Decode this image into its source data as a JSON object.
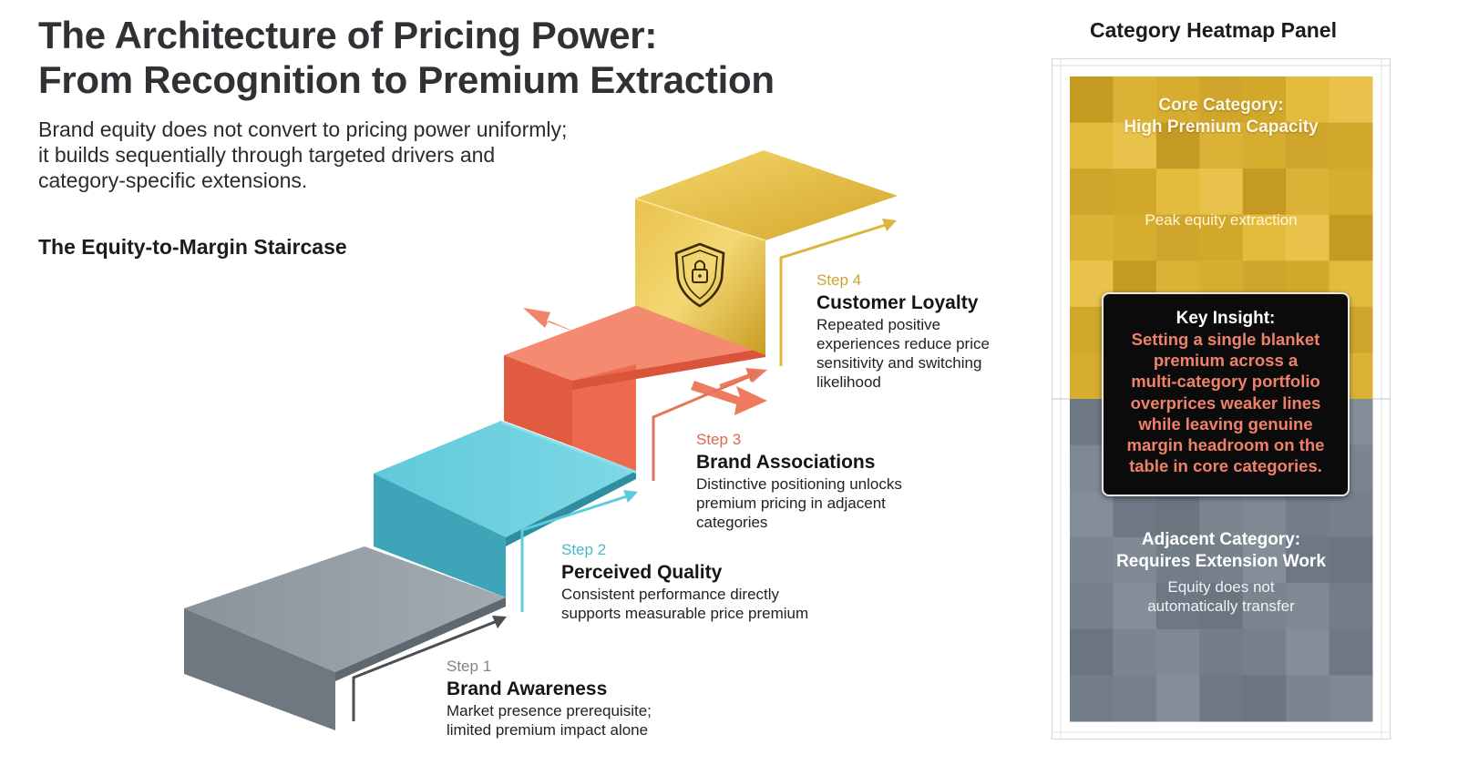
{
  "header": {
    "title_line1": "The Architecture of Pricing Power:",
    "title_line2": "From Recognition to Premium Extraction",
    "subtitle_line1": "Brand equity does not convert to pricing power uniformly;",
    "subtitle_line2": "it builds sequentially through targeted drivers and",
    "subtitle_line3": "category-specific extensions."
  },
  "staircase": {
    "heading": "The Equity-to-Margin Staircase",
    "steps": [
      {
        "number": "Step 1",
        "name": "Brand Awareness",
        "desc": [
          "Market presence prerequisite;",
          "limited premium impact alone"
        ],
        "color": "#8f989f"
      },
      {
        "number": "Step 2",
        "name": "Perceived Quality",
        "desc": [
          "Consistent performance directly",
          "supports measurable price premium"
        ],
        "color": "#5cc6d8"
      },
      {
        "number": "Step 3",
        "name": "Brand Associations",
        "desc": [
          "Distinctive positioning unlocks",
          "premium pricing in adjacent",
          "categories"
        ],
        "color": "#f07459"
      },
      {
        "number": "Step 4",
        "name": "Customer Loyalty",
        "desc": [
          "Repeated positive",
          "experiences reduce price",
          "sensitivity and switching",
          "likelihood"
        ],
        "color": "#d9ad2e"
      }
    ],
    "icons": {
      "top_step": "shield-lock-icon",
      "branching": "arrow-icon"
    }
  },
  "panel": {
    "title": "Category Heatmap Panel",
    "core": {
      "title_line1": "Core Category:",
      "title_line2": "High Premium Capacity",
      "sub": "Peak equity extraction",
      "color": "#dcb133"
    },
    "insight": {
      "label": "Key Insight:",
      "lines": [
        "Setting a single blanket",
        "premium across a",
        "multi-category portfolio",
        "overprices weaker lines",
        "while leaving genuine",
        "margin headroom on the",
        "table in core categories."
      ],
      "text_color": "#ef8169"
    },
    "adjacent": {
      "title_line1": "Adjacent Category:",
      "title_line2": "Requires Extension Work",
      "sub_line1": "Equity does not",
      "sub_line2": "automatically transfer",
      "color": "#7b8792"
    }
  }
}
